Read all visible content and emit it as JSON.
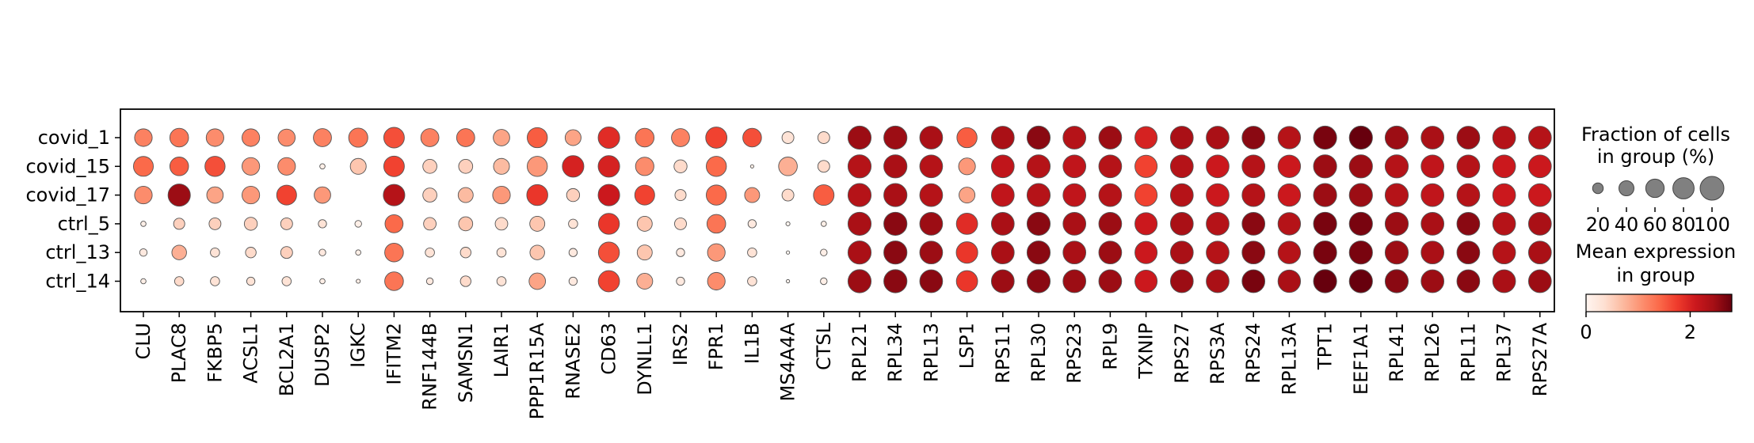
{
  "chart_data": {
    "type": "dotplot",
    "title": "",
    "xlabel": "",
    "ylabel": "",
    "genes": [
      "CLU",
      "PLAC8",
      "FKBP5",
      "ACSL1",
      "BCL2A1",
      "DUSP2",
      "IGKC",
      "IFITM2",
      "RNF144B",
      "SAMSN1",
      "LAIR1",
      "PPP1R15A",
      "RNASE2",
      "CD63",
      "DYNLL1",
      "IRS2",
      "FPR1",
      "IL1B",
      "MS4A4A",
      "CTSL",
      "RPL21",
      "RPL34",
      "RPL13",
      "LSP1",
      "RPS11",
      "RPL30",
      "RPS23",
      "RPL9",
      "TXNIP",
      "RPS27",
      "RPS3A",
      "RPS24",
      "RPL13A",
      "TPT1",
      "EEF1A1",
      "RPL41",
      "RPL26",
      "RPL11",
      "RPL37",
      "RPS27A"
    ],
    "groups": [
      "covid_1",
      "covid_15",
      "covid_17",
      "ctrl_5",
      "ctrl_13",
      "ctrl_14"
    ],
    "fraction": [
      [
        55,
        62,
        55,
        55,
        52,
        58,
        65,
        75,
        58,
        58,
        48,
        72,
        45,
        82,
        62,
        58,
        80,
        62,
        25,
        25,
        95,
        95,
        92,
        72,
        92,
        95,
        92,
        92,
        88,
        92,
        92,
        92,
        90,
        95,
        95,
        95,
        92,
        92,
        92,
        92
      ],
      [
        70,
        62,
        72,
        55,
        55,
        5,
        45,
        75,
        35,
        35,
        45,
        72,
        82,
        82,
        60,
        30,
        72,
        2,
        62,
        25,
        95,
        95,
        92,
        50,
        92,
        95,
        92,
        92,
        88,
        92,
        92,
        92,
        90,
        95,
        95,
        95,
        92,
        92,
        92,
        92
      ],
      [
        55,
        88,
        48,
        55,
        70,
        48,
        0,
        82,
        35,
        40,
        55,
        78,
        30,
        82,
        70,
        22,
        72,
        40,
        25,
        75,
        95,
        95,
        92,
        45,
        92,
        95,
        92,
        92,
        88,
        92,
        92,
        92,
        90,
        95,
        95,
        95,
        92,
        92,
        92,
        92
      ],
      [
        5,
        22,
        25,
        30,
        25,
        12,
        8,
        58,
        28,
        35,
        28,
        40,
        15,
        78,
        40,
        25,
        62,
        12,
        3,
        5,
        95,
        95,
        92,
        80,
        92,
        95,
        92,
        92,
        88,
        92,
        92,
        92,
        90,
        95,
        95,
        95,
        92,
        92,
        92,
        92
      ],
      [
        10,
        38,
        15,
        20,
        25,
        8,
        5,
        62,
        15,
        20,
        15,
        38,
        12,
        78,
        40,
        12,
        55,
        15,
        2,
        8,
        95,
        95,
        92,
        82,
        92,
        95,
        92,
        92,
        88,
        92,
        92,
        92,
        90,
        95,
        95,
        95,
        92,
        92,
        92,
        92
      ],
      [
        5,
        15,
        15,
        12,
        15,
        5,
        3,
        62,
        8,
        20,
        15,
        48,
        12,
        80,
        45,
        12,
        55,
        15,
        2,
        8,
        95,
        95,
        92,
        80,
        92,
        95,
        92,
        92,
        88,
        92,
        92,
        92,
        90,
        95,
        95,
        95,
        92,
        92,
        92,
        92
      ]
    ],
    "expression": [
      [
        1.2,
        1.3,
        1.1,
        1.2,
        1.1,
        1.2,
        1.3,
        1.6,
        1.2,
        1.3,
        0.9,
        1.5,
        0.9,
        1.9,
        1.3,
        1.2,
        1.7,
        1.6,
        0.3,
        0.4,
        2.5,
        2.5,
        2.4,
        1.5,
        2.4,
        2.6,
        2.3,
        2.5,
        2.0,
        2.4,
        2.4,
        2.6,
        2.3,
        2.7,
        2.8,
        2.5,
        2.4,
        2.5,
        2.3,
        2.3
      ],
      [
        1.4,
        1.5,
        1.6,
        1.0,
        1.1,
        0.1,
        0.6,
        1.7,
        0.5,
        0.5,
        0.7,
        1.0,
        2.0,
        2.0,
        1.1,
        0.4,
        1.4,
        0.1,
        0.8,
        0.4,
        2.3,
        2.4,
        2.3,
        1.0,
        2.2,
        2.3,
        2.2,
        2.3,
        1.7,
        2.3,
        2.1,
        2.3,
        2.1,
        2.5,
        2.5,
        2.3,
        2.2,
        2.3,
        2.1,
        2.1
      ],
      [
        1.1,
        2.5,
        0.9,
        1.0,
        1.7,
        1.0,
        0,
        2.3,
        0.5,
        0.7,
        1.0,
        1.8,
        0.5,
        2.1,
        1.7,
        0.4,
        1.4,
        1.0,
        0.4,
        1.5,
        2.3,
        2.4,
        2.3,
        0.9,
        2.2,
        2.3,
        2.2,
        2.3,
        1.7,
        2.3,
        2.1,
        2.3,
        2.1,
        2.5,
        2.5,
        2.3,
        2.2,
        2.3,
        2.1,
        2.1
      ],
      [
        0.1,
        0.5,
        0.5,
        0.5,
        0.5,
        0.3,
        0.1,
        1.4,
        0.5,
        0.6,
        0.4,
        0.6,
        0.3,
        1.8,
        0.6,
        0.4,
        1.3,
        0.2,
        0,
        0.1,
        2.4,
        2.6,
        2.5,
        1.9,
        2.4,
        2.6,
        2.4,
        2.5,
        2.1,
        2.4,
        2.3,
        2.6,
        2.3,
        2.7,
        2.7,
        2.5,
        2.4,
        2.6,
        2.3,
        2.4
      ],
      [
        0.2,
        0.8,
        0.3,
        0.4,
        0.5,
        0.2,
        0.1,
        1.3,
        0.3,
        0.4,
        0.3,
        0.6,
        0.2,
        1.6,
        0.6,
        0.2,
        1.0,
        0.3,
        0,
        0.1,
        2.4,
        2.6,
        2.5,
        1.8,
        2.4,
        2.6,
        2.4,
        2.5,
        2.1,
        2.4,
        2.3,
        2.6,
        2.3,
        2.7,
        2.7,
        2.5,
        2.4,
        2.6,
        2.3,
        2.4
      ],
      [
        0.1,
        0.4,
        0.3,
        0.3,
        0.3,
        0.1,
        0.1,
        1.3,
        0.2,
        0.4,
        0.3,
        0.9,
        0.2,
        1.7,
        0.8,
        0.2,
        1.1,
        0.3,
        0,
        0.1,
        2.5,
        2.6,
        2.6,
        1.8,
        2.5,
        2.6,
        2.5,
        2.5,
        2.1,
        2.5,
        2.4,
        2.7,
        2.4,
        2.8,
        2.8,
        2.6,
        2.5,
        2.6,
        2.4,
        2.5
      ]
    ],
    "size_legend": {
      "title_line1": "Fraction of cells",
      "title_line2": "in group (%)",
      "values": [
        20,
        40,
        60,
        80,
        100
      ],
      "tick_labels": [
        "20",
        "40",
        "60",
        "80",
        "100"
      ]
    },
    "color_legend": {
      "title_line1": "Mean expression",
      "title_line2": "in group",
      "vmin": 0,
      "vmax": 2.8,
      "tick_values": [
        0,
        2
      ],
      "tick_labels": [
        "0",
        "2"
      ],
      "colormap": "Reds",
      "colormap_stops": [
        "#fff5f0",
        "#fee0d2",
        "#fcbba1",
        "#fc9272",
        "#fb6a4a",
        "#ef3b2c",
        "#cb181d",
        "#a50f15",
        "#67000d"
      ]
    },
    "dot_edge_color": "#555555"
  }
}
